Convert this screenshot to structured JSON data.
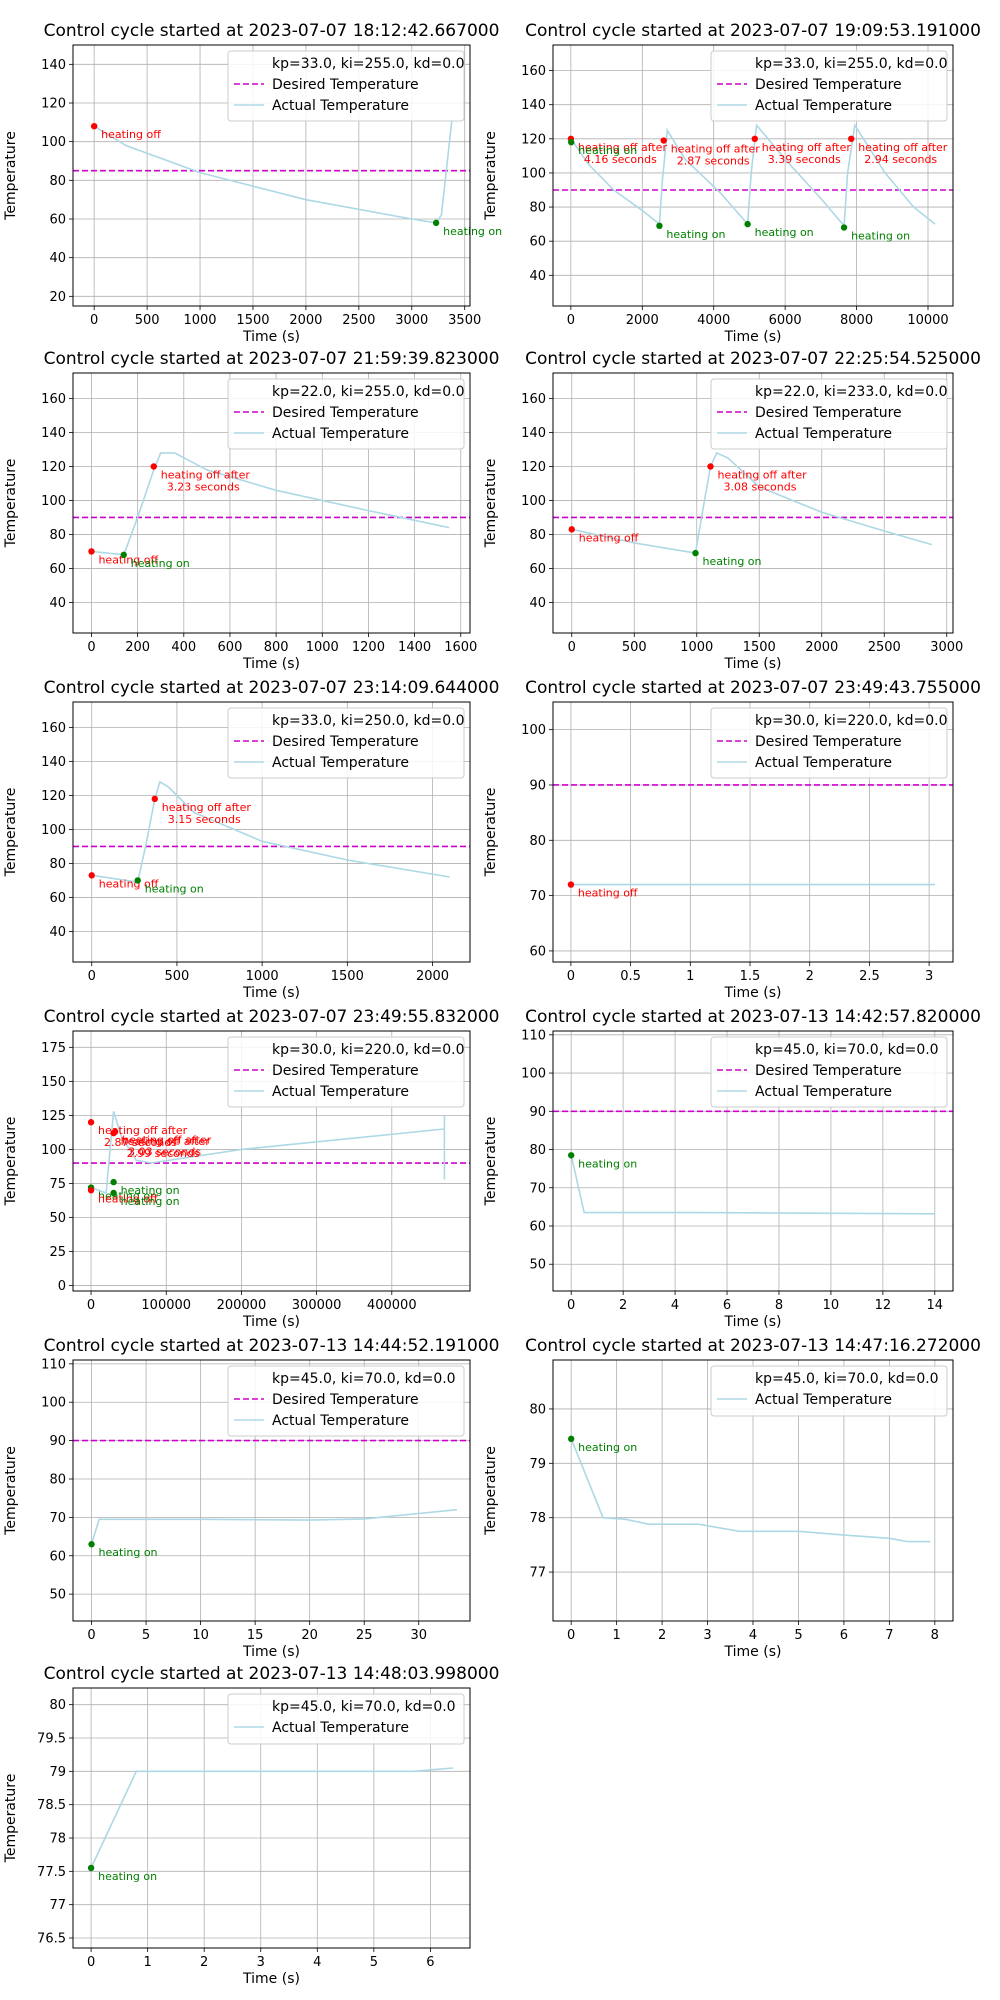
{
  "colors": {
    "desired": "#cc00cc",
    "actual": "#add8e6",
    "off": "#ff0000",
    "on": "#008000",
    "grid": "#b0b0b0"
  },
  "chart_data": [
    {
      "type": "line",
      "title": "Control cycle started at 2023-07-07 18:12:42.667000",
      "xlabel": "Time (s)",
      "ylabel": "Temperature",
      "xlim": [
        -200,
        3550
      ],
      "ylim": [
        15,
        150
      ],
      "xticks": [
        0,
        500,
        1000,
        1500,
        2000,
        2500,
        3000,
        3500
      ],
      "yticks": [
        20,
        40,
        60,
        80,
        100,
        120,
        140
      ],
      "grid": true,
      "legend": "top-right",
      "legend_params": "kp=33.0, ki=255.0, kd=0.0",
      "desired": 85,
      "actual": [
        [
          0,
          108
        ],
        [
          300,
          98
        ],
        [
          1000,
          84
        ],
        [
          2000,
          70
        ],
        [
          3000,
          60
        ],
        [
          3230,
          58
        ],
        [
          3280,
          62
        ],
        [
          3340,
          92
        ],
        [
          3380,
          112
        ]
      ],
      "points": [
        {
          "x": 0,
          "y": 108,
          "kind": "off",
          "label": [
            "heating off"
          ]
        },
        {
          "x": 3230,
          "y": 58,
          "kind": "on",
          "label": [
            "heating on"
          ]
        }
      ]
    },
    {
      "type": "line",
      "title": "Control cycle started at 2023-07-07 19:09:53.191000",
      "xlabel": "Time (s)",
      "ylabel": "Temperature",
      "xlim": [
        -500,
        10700
      ],
      "ylim": [
        22,
        175
      ],
      "xticks": [
        0,
        2000,
        4000,
        6000,
        8000,
        10000
      ],
      "yticks": [
        40,
        60,
        80,
        100,
        120,
        140,
        160
      ],
      "grid": true,
      "legend": "top-right",
      "legend_params": "kp=33.0, ki=255.0, kd=0.0",
      "desired": 90,
      "actual": [
        [
          0,
          120
        ],
        [
          500,
          105
        ],
        [
          1200,
          90
        ],
        [
          2000,
          78
        ],
        [
          2480,
          70
        ],
        [
          2560,
          95
        ],
        [
          2700,
          125
        ],
        [
          3200,
          108
        ],
        [
          4200,
          88
        ],
        [
          4950,
          70
        ],
        [
          5050,
          100
        ],
        [
          5200,
          128
        ],
        [
          6000,
          108
        ],
        [
          7000,
          85
        ],
        [
          7650,
          69
        ],
        [
          7750,
          100
        ],
        [
          7950,
          128
        ],
        [
          8800,
          100
        ],
        [
          9600,
          80
        ],
        [
          10200,
          70
        ]
      ],
      "points": [
        {
          "x": 0,
          "y": 120,
          "kind": "off",
          "label": [
            "heating off after",
            "4.16 seconds"
          ]
        },
        {
          "x": 10,
          "y": 118,
          "kind": "on",
          "label": [
            "heating on"
          ]
        },
        {
          "x": 2480,
          "y": 69,
          "kind": "on",
          "label": [
            "heating on"
          ]
        },
        {
          "x": 2600,
          "y": 119,
          "kind": "off",
          "label": [
            "heating off after",
            "2.87 seconds"
          ]
        },
        {
          "x": 4950,
          "y": 70,
          "kind": "on",
          "label": [
            "heating on"
          ]
        },
        {
          "x": 5150,
          "y": 120,
          "kind": "off",
          "label": [
            "heating off after",
            "3.39 seconds"
          ]
        },
        {
          "x": 7650,
          "y": 68,
          "kind": "on",
          "label": [
            "heating on"
          ]
        },
        {
          "x": 7850,
          "y": 120,
          "kind": "off",
          "label": [
            "heating off after",
            "2.94 seconds"
          ]
        }
      ]
    },
    {
      "type": "line",
      "title": "Control cycle started at 2023-07-07 21:59:39.823000",
      "xlabel": "Time (s)",
      "ylabel": "Temperature",
      "xlim": [
        -80,
        1640
      ],
      "ylim": [
        22,
        175
      ],
      "xticks": [
        0,
        200,
        400,
        600,
        800,
        1000,
        1200,
        1400,
        1600
      ],
      "yticks": [
        40,
        60,
        80,
        100,
        120,
        140,
        160
      ],
      "grid": true,
      "legend": "top-right",
      "legend_params": "kp=22.0, ki=255.0, kd=0.0",
      "desired": 90,
      "actual": [
        [
          0,
          70
        ],
        [
          140,
          68
        ],
        [
          200,
          90
        ],
        [
          270,
          118
        ],
        [
          300,
          128
        ],
        [
          360,
          128
        ],
        [
          500,
          118
        ],
        [
          800,
          106
        ],
        [
          1200,
          94
        ],
        [
          1550,
          84
        ]
      ],
      "points": [
        {
          "x": 0,
          "y": 70,
          "kind": "off",
          "label": [
            "heating off"
          ]
        },
        {
          "x": 140,
          "y": 68,
          "kind": "on",
          "label": [
            "heating on"
          ]
        },
        {
          "x": 270,
          "y": 120,
          "kind": "off",
          "label": [
            "heating off after",
            "3.23 seconds"
          ]
        }
      ]
    },
    {
      "type": "line",
      "title": "Control cycle started at 2023-07-07 22:25:54.525000",
      "xlabel": "Time (s)",
      "ylabel": "Temperature",
      "xlim": [
        -150,
        3050
      ],
      "ylim": [
        22,
        175
      ],
      "xticks": [
        0,
        500,
        1000,
        1500,
        2000,
        2500,
        3000
      ],
      "yticks": [
        40,
        60,
        80,
        100,
        120,
        140,
        160
      ],
      "grid": true,
      "legend": "top-right",
      "legend_params": "kp=22.0, ki=233.0, kd=0.0",
      "desired": 90,
      "actual": [
        [
          0,
          83
        ],
        [
          500,
          75
        ],
        [
          990,
          69
        ],
        [
          1050,
          95
        ],
        [
          1110,
          120
        ],
        [
          1160,
          128
        ],
        [
          1250,
          125
        ],
        [
          1500,
          108
        ],
        [
          2000,
          93
        ],
        [
          2500,
          82
        ],
        [
          2880,
          74
        ]
      ],
      "points": [
        {
          "x": 0,
          "y": 83,
          "kind": "off",
          "label": [
            "heating off"
          ]
        },
        {
          "x": 990,
          "y": 69,
          "kind": "on",
          "label": [
            "heating on"
          ]
        },
        {
          "x": 1110,
          "y": 120,
          "kind": "off",
          "label": [
            "heating off after",
            "3.08 seconds"
          ]
        }
      ]
    },
    {
      "type": "line",
      "title": "Control cycle started at 2023-07-07 23:14:09.644000",
      "xlabel": "Time (s)",
      "ylabel": "Temperature",
      "xlim": [
        -110,
        2220
      ],
      "ylim": [
        22,
        175
      ],
      "xticks": [
        0,
        500,
        1000,
        1500,
        2000
      ],
      "yticks": [
        40,
        60,
        80,
        100,
        120,
        140,
        160
      ],
      "grid": true,
      "legend": "top-right",
      "legend_params": "kp=33.0, ki=250.0, kd=0.0",
      "desired": 90,
      "actual": [
        [
          0,
          73
        ],
        [
          270,
          69
        ],
        [
          320,
          92
        ],
        [
          370,
          118
        ],
        [
          400,
          128
        ],
        [
          450,
          125
        ],
        [
          600,
          110
        ],
        [
          1000,
          93
        ],
        [
          1500,
          82
        ],
        [
          2100,
          72
        ]
      ],
      "points": [
        {
          "x": 0,
          "y": 73,
          "kind": "off",
          "label": [
            "heating off"
          ]
        },
        {
          "x": 270,
          "y": 70,
          "kind": "on",
          "label": [
            "heating on"
          ]
        },
        {
          "x": 370,
          "y": 118,
          "kind": "off",
          "label": [
            "heating off after",
            "3.15 seconds"
          ]
        }
      ]
    },
    {
      "type": "line",
      "title": "Control cycle started at 2023-07-07 23:49:43.755000",
      "xlabel": "Time (s)",
      "ylabel": "Temperature",
      "xlim": [
        -0.15,
        3.2
      ],
      "ylim": [
        58,
        105
      ],
      "xticks": [
        0.0,
        0.5,
        1.0,
        1.5,
        2.0,
        2.5,
        3.0
      ],
      "yticks": [
        60,
        70,
        80,
        90,
        100
      ],
      "grid": true,
      "legend": "top-right",
      "legend_params": "kp=30.0, ki=220.0, kd=0.0",
      "desired": 90,
      "actual": [
        [
          0,
          72
        ],
        [
          3.05,
          72
        ]
      ],
      "points": [
        {
          "x": 0,
          "y": 72,
          "kind": "off",
          "label": [
            "heating off"
          ]
        }
      ]
    },
    {
      "type": "line",
      "title": "Control cycle started at 2023-07-07 23:49:55.832000",
      "xlabel": "Time (s)",
      "ylabel": "Temperature",
      "xlim": [
        -24000,
        504000
      ],
      "ylim": [
        -4,
        187
      ],
      "xticks": [
        0,
        100000,
        200000,
        300000,
        400000
      ],
      "yticks": [
        0,
        25,
        50,
        75,
        100,
        125,
        150,
        175
      ],
      "grid": true,
      "legend": "top-right",
      "legend_params": "kp=30.0, ki=220.0, kd=0.0",
      "desired": 90,
      "actual": [
        [
          0,
          72
        ],
        [
          20000,
          68
        ],
        [
          30000,
          128
        ],
        [
          40000,
          110
        ],
        [
          60000,
          92
        ],
        [
          80000,
          90
        ],
        [
          200000,
          100
        ],
        [
          470000,
          115
        ],
        [
          470000,
          78
        ],
        [
          470000,
          125
        ]
      ],
      "points": [
        {
          "x": 0,
          "y": 120,
          "kind": "off",
          "label": [
            "heating off after",
            "2.87 seconds"
          ]
        },
        {
          "x": 0,
          "y": 72,
          "kind": "on",
          "label": [
            "heating on"
          ]
        },
        {
          "x": 0,
          "y": 70,
          "kind": "off",
          "label": [
            "heating off"
          ]
        },
        {
          "x": 30000,
          "y": 76,
          "kind": "on",
          "label": [
            "heating on"
          ]
        },
        {
          "x": 30000,
          "y": 68,
          "kind": "on",
          "label": [
            "heating on"
          ]
        },
        {
          "x": 32000,
          "y": 113,
          "kind": "off",
          "label": [
            "heating off after",
            "3.03 seconds"
          ]
        },
        {
          "x": 30000,
          "y": 112,
          "kind": "off",
          "label": [
            "heating off after",
            "2.99 seconds"
          ]
        }
      ]
    },
    {
      "type": "line",
      "title": "Control cycle started at 2023-07-13 14:42:57.820000",
      "xlabel": "Time (s)",
      "ylabel": "Temperature",
      "xlim": [
        -0.7,
        14.7
      ],
      "ylim": [
        43,
        111
      ],
      "xticks": [
        0,
        2,
        4,
        6,
        8,
        10,
        12,
        14
      ],
      "yticks": [
        50,
        60,
        70,
        80,
        90,
        100,
        110
      ],
      "grid": true,
      "legend": "top-right",
      "legend_params": "kp=45.0, ki=70.0, kd=0.0",
      "desired": 90,
      "actual": [
        [
          0,
          78.5
        ],
        [
          0.5,
          63.5
        ],
        [
          5,
          63.5
        ],
        [
          14,
          63.2
        ]
      ],
      "points": [
        {
          "x": 0,
          "y": 78.5,
          "kind": "on",
          "label": [
            "heating on"
          ]
        }
      ]
    },
    {
      "type": "line",
      "title": "Control cycle started at 2023-07-13 14:44:52.191000",
      "xlabel": "Time (s)",
      "ylabel": "Temperature",
      "xlim": [
        -1.7,
        34.7
      ],
      "ylim": [
        43,
        111
      ],
      "xticks": [
        0,
        5,
        10,
        15,
        20,
        25,
        30
      ],
      "yticks": [
        50,
        60,
        70,
        80,
        90,
        100,
        110
      ],
      "grid": true,
      "legend": "top-right",
      "legend_params": "kp=45.0, ki=70.0, kd=0.0",
      "desired": 90,
      "actual": [
        [
          0,
          63
        ],
        [
          0.7,
          69.5
        ],
        [
          10,
          69.5
        ],
        [
          20,
          69.3
        ],
        [
          25,
          69.6
        ],
        [
          30,
          71
        ],
        [
          33.5,
          72
        ]
      ],
      "points": [
        {
          "x": 0,
          "y": 63,
          "kind": "on",
          "label": [
            "heating on"
          ]
        }
      ]
    },
    {
      "type": "line",
      "title": "Control cycle started at 2023-07-13 14:47:16.272000",
      "xlabel": "Time (s)",
      "ylabel": "Temperature",
      "xlim": [
        -0.4,
        8.4
      ],
      "ylim": [
        76.1,
        80.9
      ],
      "xticks": [
        0,
        1,
        2,
        3,
        4,
        5,
        6,
        7,
        8
      ],
      "yticks": [
        77,
        78,
        79,
        80
      ],
      "grid": true,
      "legend": "top-right",
      "legend_params": "kp=45.0, ki=70.0, kd=0.0",
      "desired": null,
      "actual": [
        [
          0,
          79.45
        ],
        [
          0.7,
          78.0
        ],
        [
          1.2,
          77.97
        ],
        [
          1.7,
          77.88
        ],
        [
          2.8,
          77.88
        ],
        [
          3.7,
          77.75
        ],
        [
          5,
          77.75
        ],
        [
          6,
          77.68
        ],
        [
          7,
          77.62
        ],
        [
          7.4,
          77.56
        ],
        [
          7.9,
          77.56
        ]
      ],
      "points": [
        {
          "x": 0,
          "y": 79.45,
          "kind": "on",
          "label": [
            "heating on"
          ]
        }
      ]
    },
    {
      "type": "line",
      "title": "Control cycle started at 2023-07-13 14:48:03.998000",
      "xlabel": "Time (s)",
      "ylabel": "Temperature",
      "xlim": [
        -0.32,
        6.7
      ],
      "ylim": [
        76.35,
        80.25
      ],
      "xticks": [
        0,
        1,
        2,
        3,
        4,
        5,
        6
      ],
      "yticks": [
        76.5,
        77.0,
        77.5,
        78.0,
        78.5,
        79.0,
        79.5,
        80.0
      ],
      "grid": true,
      "legend": "top-right",
      "legend_params": "kp=45.0, ki=70.0, kd=0.0",
      "desired": null,
      "actual": [
        [
          0,
          77.55
        ],
        [
          0.8,
          79.0
        ],
        [
          5.7,
          79.0
        ],
        [
          6.4,
          79.05
        ]
      ],
      "points": [
        {
          "x": 0,
          "y": 77.55,
          "kind": "on",
          "label": [
            "heating on"
          ]
        }
      ]
    }
  ],
  "legend_labels": {
    "desired": "Desired Temperature",
    "actual": "Actual Temperature"
  }
}
